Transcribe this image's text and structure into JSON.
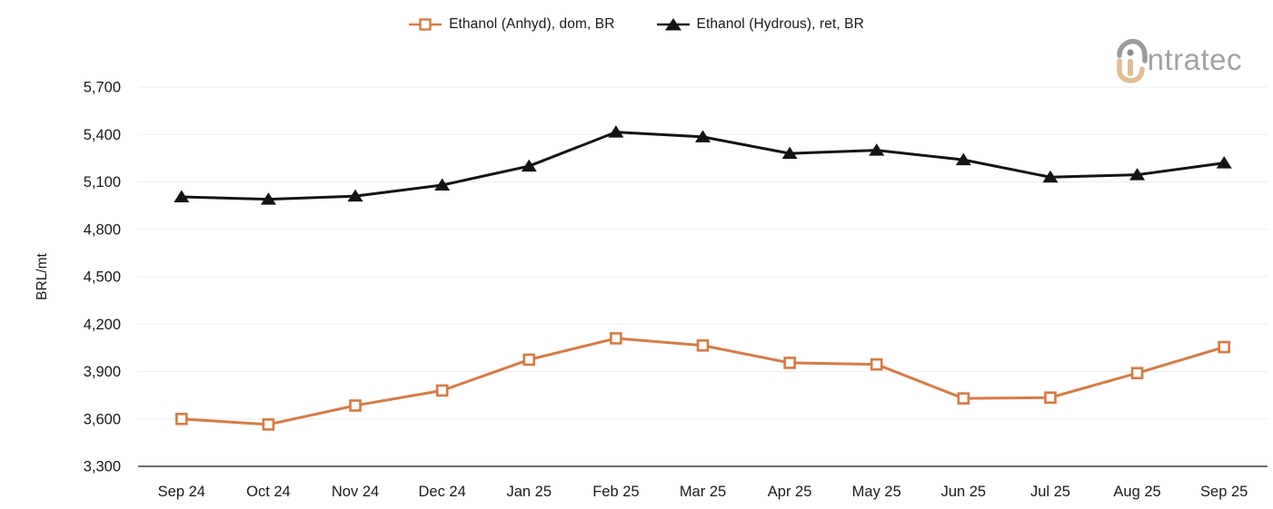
{
  "legend": {
    "items": [
      {
        "label": "Ethanol (Anhyd), dom, BR",
        "marker": "square-open",
        "color": "#D87A42"
      },
      {
        "label": "Ethanol (Hydrous), ret, BR",
        "marker": "triangle-filled",
        "color": "#141414"
      }
    ]
  },
  "logo": {
    "brand": "intratec",
    "wordmark_text": "ntratec",
    "gray": "#9c9c9c",
    "tan": "#e2bd95"
  },
  "chart_data": {
    "type": "line",
    "title": "",
    "xlabel": "",
    "ylabel": "BRL/mt",
    "ylim": [
      3300,
      5700
    ],
    "grid": true,
    "legend_position": "top-center",
    "categories": [
      "Sep 24",
      "Oct 24",
      "Nov 24",
      "Dec 24",
      "Jan 25",
      "Feb 25",
      "Mar 25",
      "Apr 25",
      "May 25",
      "Jun 25",
      "Jul 25",
      "Aug 25",
      "Sep 25"
    ],
    "yticks": [
      {
        "value": 5700,
        "label": "5,700"
      },
      {
        "value": 5400,
        "label": "5,400"
      },
      {
        "value": 5100,
        "label": "5,100"
      },
      {
        "value": 4800,
        "label": "4,800"
      },
      {
        "value": 4500,
        "label": "4,500"
      },
      {
        "value": 4200,
        "label": "4,200"
      },
      {
        "value": 3900,
        "label": "3,900"
      },
      {
        "value": 3600,
        "label": "3,600"
      },
      {
        "value": 3300,
        "label": "3,300"
      }
    ],
    "series": [
      {
        "name": "Ethanol (Anhyd), dom, BR",
        "color": "#D87A42",
        "marker": "square-open",
        "values": [
          3600,
          3565,
          3685,
          3780,
          3975,
          4110,
          4065,
          3955,
          3945,
          3730,
          3735,
          3890,
          4055
        ]
      },
      {
        "name": "Ethanol (Hydrous), ret, BR",
        "color": "#141414",
        "marker": "triangle-filled",
        "values": [
          5005,
          4990,
          5010,
          5080,
          5200,
          5415,
          5385,
          5280,
          5300,
          5240,
          5130,
          5145,
          5220
        ]
      }
    ],
    "colors": {
      "gridline": "#f0f0f0",
      "axis_line": "#3d3d3d",
      "tick_text": "#1a1a1a"
    }
  }
}
